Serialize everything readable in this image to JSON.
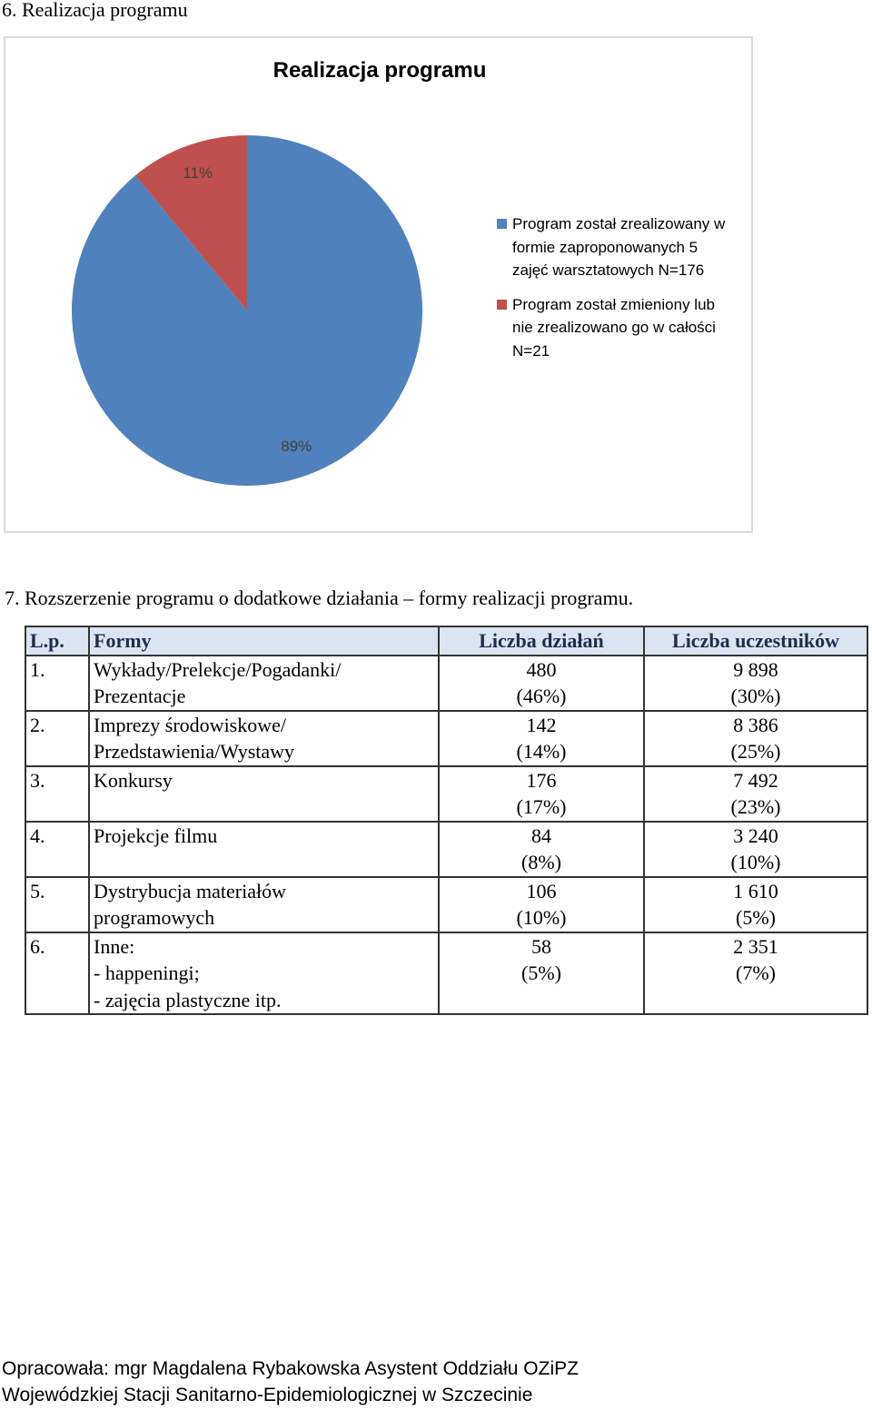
{
  "heading_1": "6.  Realizacja programu",
  "chart_data": {
    "type": "pie",
    "title": "Realizacja programu",
    "categories": [
      "Program został zrealizowany w formie zaproponowanych 5 zajęć warsztatowych N=176",
      "Program został zmieniony lub nie zrealizowano go w całości N=21"
    ],
    "values": [
      89,
      11
    ],
    "value_labels": [
      "89%",
      "11%"
    ],
    "colors": [
      "#4f81bd",
      "#c0504d"
    ]
  },
  "heading_2": "7.  Rozszerzenie programu o dodatkowe działania – formy realizacji programu.",
  "table": {
    "header": [
      "L.p.",
      "Formy",
      "Liczba działań",
      "Liczba uczestników"
    ],
    "rows": [
      {
        "lp": "1.",
        "forma": [
          "Wykłady/Prelekcje/Pogadanki/",
          "Prezentacje"
        ],
        "dzialania": "480",
        "dzialania_pct": "(46%)",
        "uczestnicy": "9 898",
        "uczestnicy_pct": "(30%)"
      },
      {
        "lp": "2.",
        "forma": [
          "Imprezy środowiskowe/",
          "Przedstawienia/Wystawy"
        ],
        "dzialania": "142",
        "dzialania_pct": "(14%)",
        "uczestnicy": "8 386",
        "uczestnicy_pct": "(25%)"
      },
      {
        "lp": "3.",
        "forma": [
          "Konkursy"
        ],
        "dzialania": "176",
        "dzialania_pct": "(17%)",
        "uczestnicy": "7 492",
        "uczestnicy_pct": "(23%)"
      },
      {
        "lp": "4.",
        "forma": [
          "Projekcje filmu"
        ],
        "dzialania": "84",
        "dzialania_pct": "(8%)",
        "uczestnicy": "3 240",
        "uczestnicy_pct": "(10%)"
      },
      {
        "lp": "5.",
        "forma": [
          "Dystrybucja materiałów",
          "programowych"
        ],
        "dzialania": "106",
        "dzialania_pct": "(10%)",
        "uczestnicy": "1 610",
        "uczestnicy_pct": "(5%)"
      },
      {
        "lp": "6.",
        "forma": [
          "Inne:",
          "- happeningi;",
          "- zajęcia plastyczne itp."
        ],
        "dzialania": "58",
        "dzialania_pct": "(5%)",
        "uczestnicy": "2 351",
        "uczestnicy_pct": "(7%)"
      }
    ]
  },
  "footer": [
    "Opracowała: mgr Magdalena Rybakowska Asystent Oddziału OZiPZ",
    "Wojewódzkiej Stacji Sanitarno-Epidemiologicznej w Szczecinie"
  ]
}
